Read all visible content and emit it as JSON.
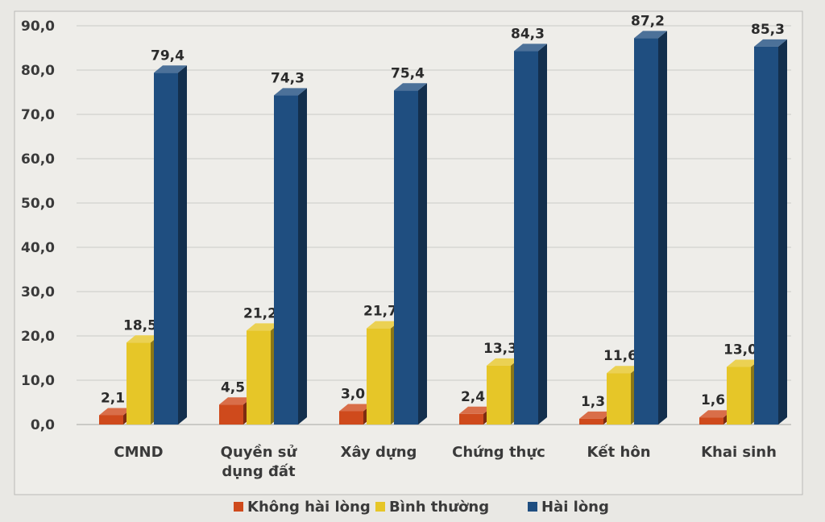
{
  "chart_data": {
    "type": "bar",
    "style": "3d-clustered-column",
    "title": "",
    "xlabel": "",
    "ylabel": "",
    "ylim": [
      0,
      90
    ],
    "yticks": [
      "0,0",
      "10,0",
      "20,0",
      "30,0",
      "40,0",
      "50,0",
      "60,0",
      "70,0",
      "80,0",
      "90,0"
    ],
    "ytick_values": [
      0,
      10,
      20,
      30,
      40,
      50,
      60,
      70,
      80,
      90
    ],
    "grid": true,
    "legend_position": "bottom",
    "categories": [
      [
        "CMND"
      ],
      [
        "Quyền sử",
        "dụng đất"
      ],
      [
        "Xây dựng"
      ],
      [
        "Chứng thực"
      ],
      [
        "Kết hôn"
      ],
      [
        "Khai sinh"
      ]
    ],
    "series": [
      {
        "name": "Không hài lòng",
        "color": "#cf4a1c",
        "values": [
          2.1,
          4.5,
          3.0,
          2.4,
          1.3,
          1.6
        ],
        "labels": [
          "2,1",
          "4,5",
          "3,0",
          "2,4",
          "1,3",
          "1,6"
        ]
      },
      {
        "name": "Bình thường",
        "color": "#e6c628",
        "values": [
          18.5,
          21.2,
          21.7,
          13.3,
          11.6,
          13.0
        ],
        "labels": [
          "18,5",
          "21,2",
          "21,7",
          "13,3",
          "11,6",
          "13,0"
        ]
      },
      {
        "name": "Hài lòng",
        "color": "#1f4e80",
        "values": [
          79.4,
          74.3,
          75.4,
          84.3,
          87.2,
          85.3
        ],
        "labels": [
          "79,4",
          "74,3",
          "75,4",
          "84,3",
          "87,2",
          "85,3"
        ]
      }
    ]
  }
}
